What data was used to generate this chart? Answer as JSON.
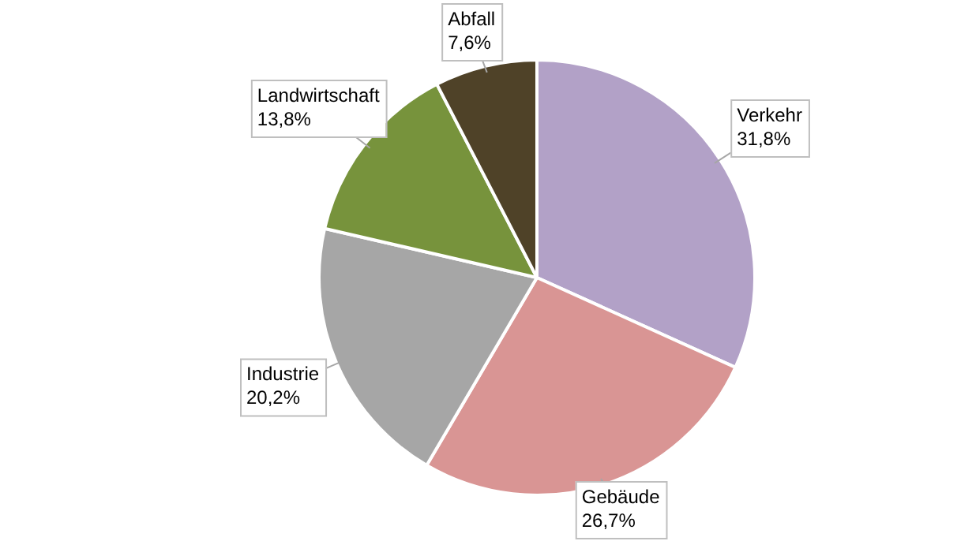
{
  "chart_data": {
    "type": "pie",
    "categories": [
      "Verkehr",
      "Gebäude",
      "Industrie",
      "Landwirtschaft",
      "Abfall"
    ],
    "values": [
      31.8,
      26.7,
      20.2,
      13.8,
      7.6
    ],
    "value_labels": [
      "31,8%",
      "26,7%",
      "20,2%",
      "13,8%",
      "7,6%"
    ],
    "colors": [
      "#b2a1c7",
      "#d99594",
      "#a6a6a6",
      "#77933c",
      "#4f4228"
    ],
    "legend": false
  }
}
